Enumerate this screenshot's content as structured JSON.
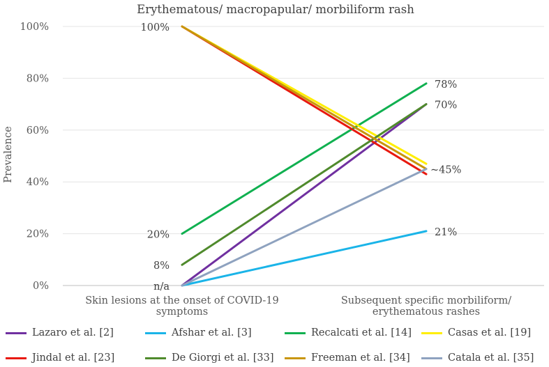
{
  "chart_data": {
    "type": "line",
    "title": "Erythematous/ macropapular/ morbiliform rash",
    "ylabel": "Prevalence",
    "xlabel": "",
    "ylim": [
      0,
      100
    ],
    "yticks": [
      "0%",
      "20%",
      "40%",
      "60%",
      "80%",
      "100%"
    ],
    "categories": [
      "Skin lesions at the onset of COVID-19 symptoms",
      "Subsequent specific morbiliform/ erythematous rashes"
    ],
    "category_lines": [
      [
        "Skin lesions at the onset of COVID-19",
        "symptoms"
      ],
      [
        "Subsequent specific morbiliform/",
        "erythematous rashes"
      ]
    ],
    "series": [
      {
        "name": "Lazaro et al. [2]",
        "color": "#7030a0",
        "values": [
          0,
          70
        ]
      },
      {
        "name": "Afshar et al. [3]",
        "color": "#1ab4e8",
        "values": [
          0,
          21
        ]
      },
      {
        "name": "Recalcati et al. [14]",
        "color": "#10b050",
        "values": [
          20,
          78
        ]
      },
      {
        "name": "Casas et al. [19]",
        "color": "#ffee00",
        "values": [
          100,
          47
        ]
      },
      {
        "name": "Jindal et al. [23]",
        "color": "#e8190f",
        "values": [
          100,
          43
        ]
      },
      {
        "name": "De Giorgi et al. [33]",
        "color": "#4f8a2c",
        "values": [
          8,
          70
        ]
      },
      {
        "name": "Freeman et al. [34]",
        "color": "#c8960c",
        "values": [
          100,
          45
        ]
      },
      {
        "name": "Catala et al. [35]",
        "color": "#8ea2bf",
        "values": [
          0,
          45
        ]
      }
    ],
    "annotations": [
      {
        "text": "100%",
        "category": 0,
        "value": 100
      },
      {
        "text": "20%",
        "category": 0,
        "value": 20
      },
      {
        "text": "8%",
        "category": 0,
        "value": 8
      },
      {
        "text": "n/a",
        "category": 0,
        "value": 0
      },
      {
        "text": "78%",
        "category": 1,
        "value": 78
      },
      {
        "text": "70%",
        "category": 1,
        "value": 70
      },
      {
        "text": "~45%",
        "category": 1,
        "value": 45
      },
      {
        "text": "21%",
        "category": 1,
        "value": 21
      }
    ],
    "legend_position": "bottom"
  }
}
